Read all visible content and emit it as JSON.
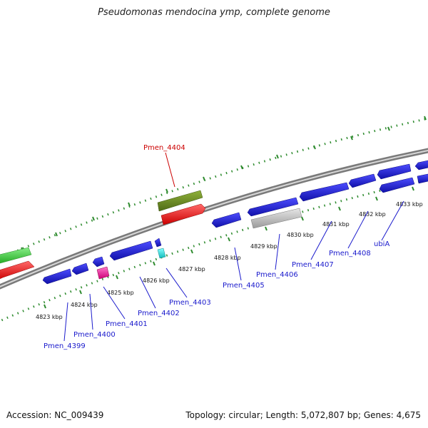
{
  "title": "Pseudomonas mendocina ymp, complete genome",
  "footer": {
    "accession": "Accession: NC_009439",
    "summary": "Topology: circular; Length: 5,072,807 bp; Genes: 4,675"
  },
  "colors": {
    "backbone": "#8a8a8a",
    "tick_track": "#2e8b2e",
    "forward_cds": "#ff2a2a",
    "rna_gene": "#6b8e23",
    "other_green": "#44cc44",
    "reverse_cds": "#2222dd",
    "pseudo": "#bbbbbb",
    "magenta_gene": "#ff33aa",
    "cyan_gene": "#22dddd",
    "highlight_label": "#cc0000",
    "label": "#1a1acc"
  },
  "scale_labels": [
    "4823 kbp",
    "4824 kbp",
    "4825 kbp",
    "4826 kbp",
    "4827 kbp",
    "4828 kbp",
    "4829 kbp",
    "4830 kbp",
    "4831 kbp",
    "4832 kbp",
    "4833 kbp"
  ],
  "gene_labels": [
    "Pmen_4404",
    "Pmen_4399",
    "Pmen_4400",
    "Pmen_4401",
    "Pmen_4402",
    "Pmen_4403",
    "Pmen_4405",
    "Pmen_4406",
    "Pmen_4407",
    "Pmen_4408",
    "ubiA"
  ]
}
